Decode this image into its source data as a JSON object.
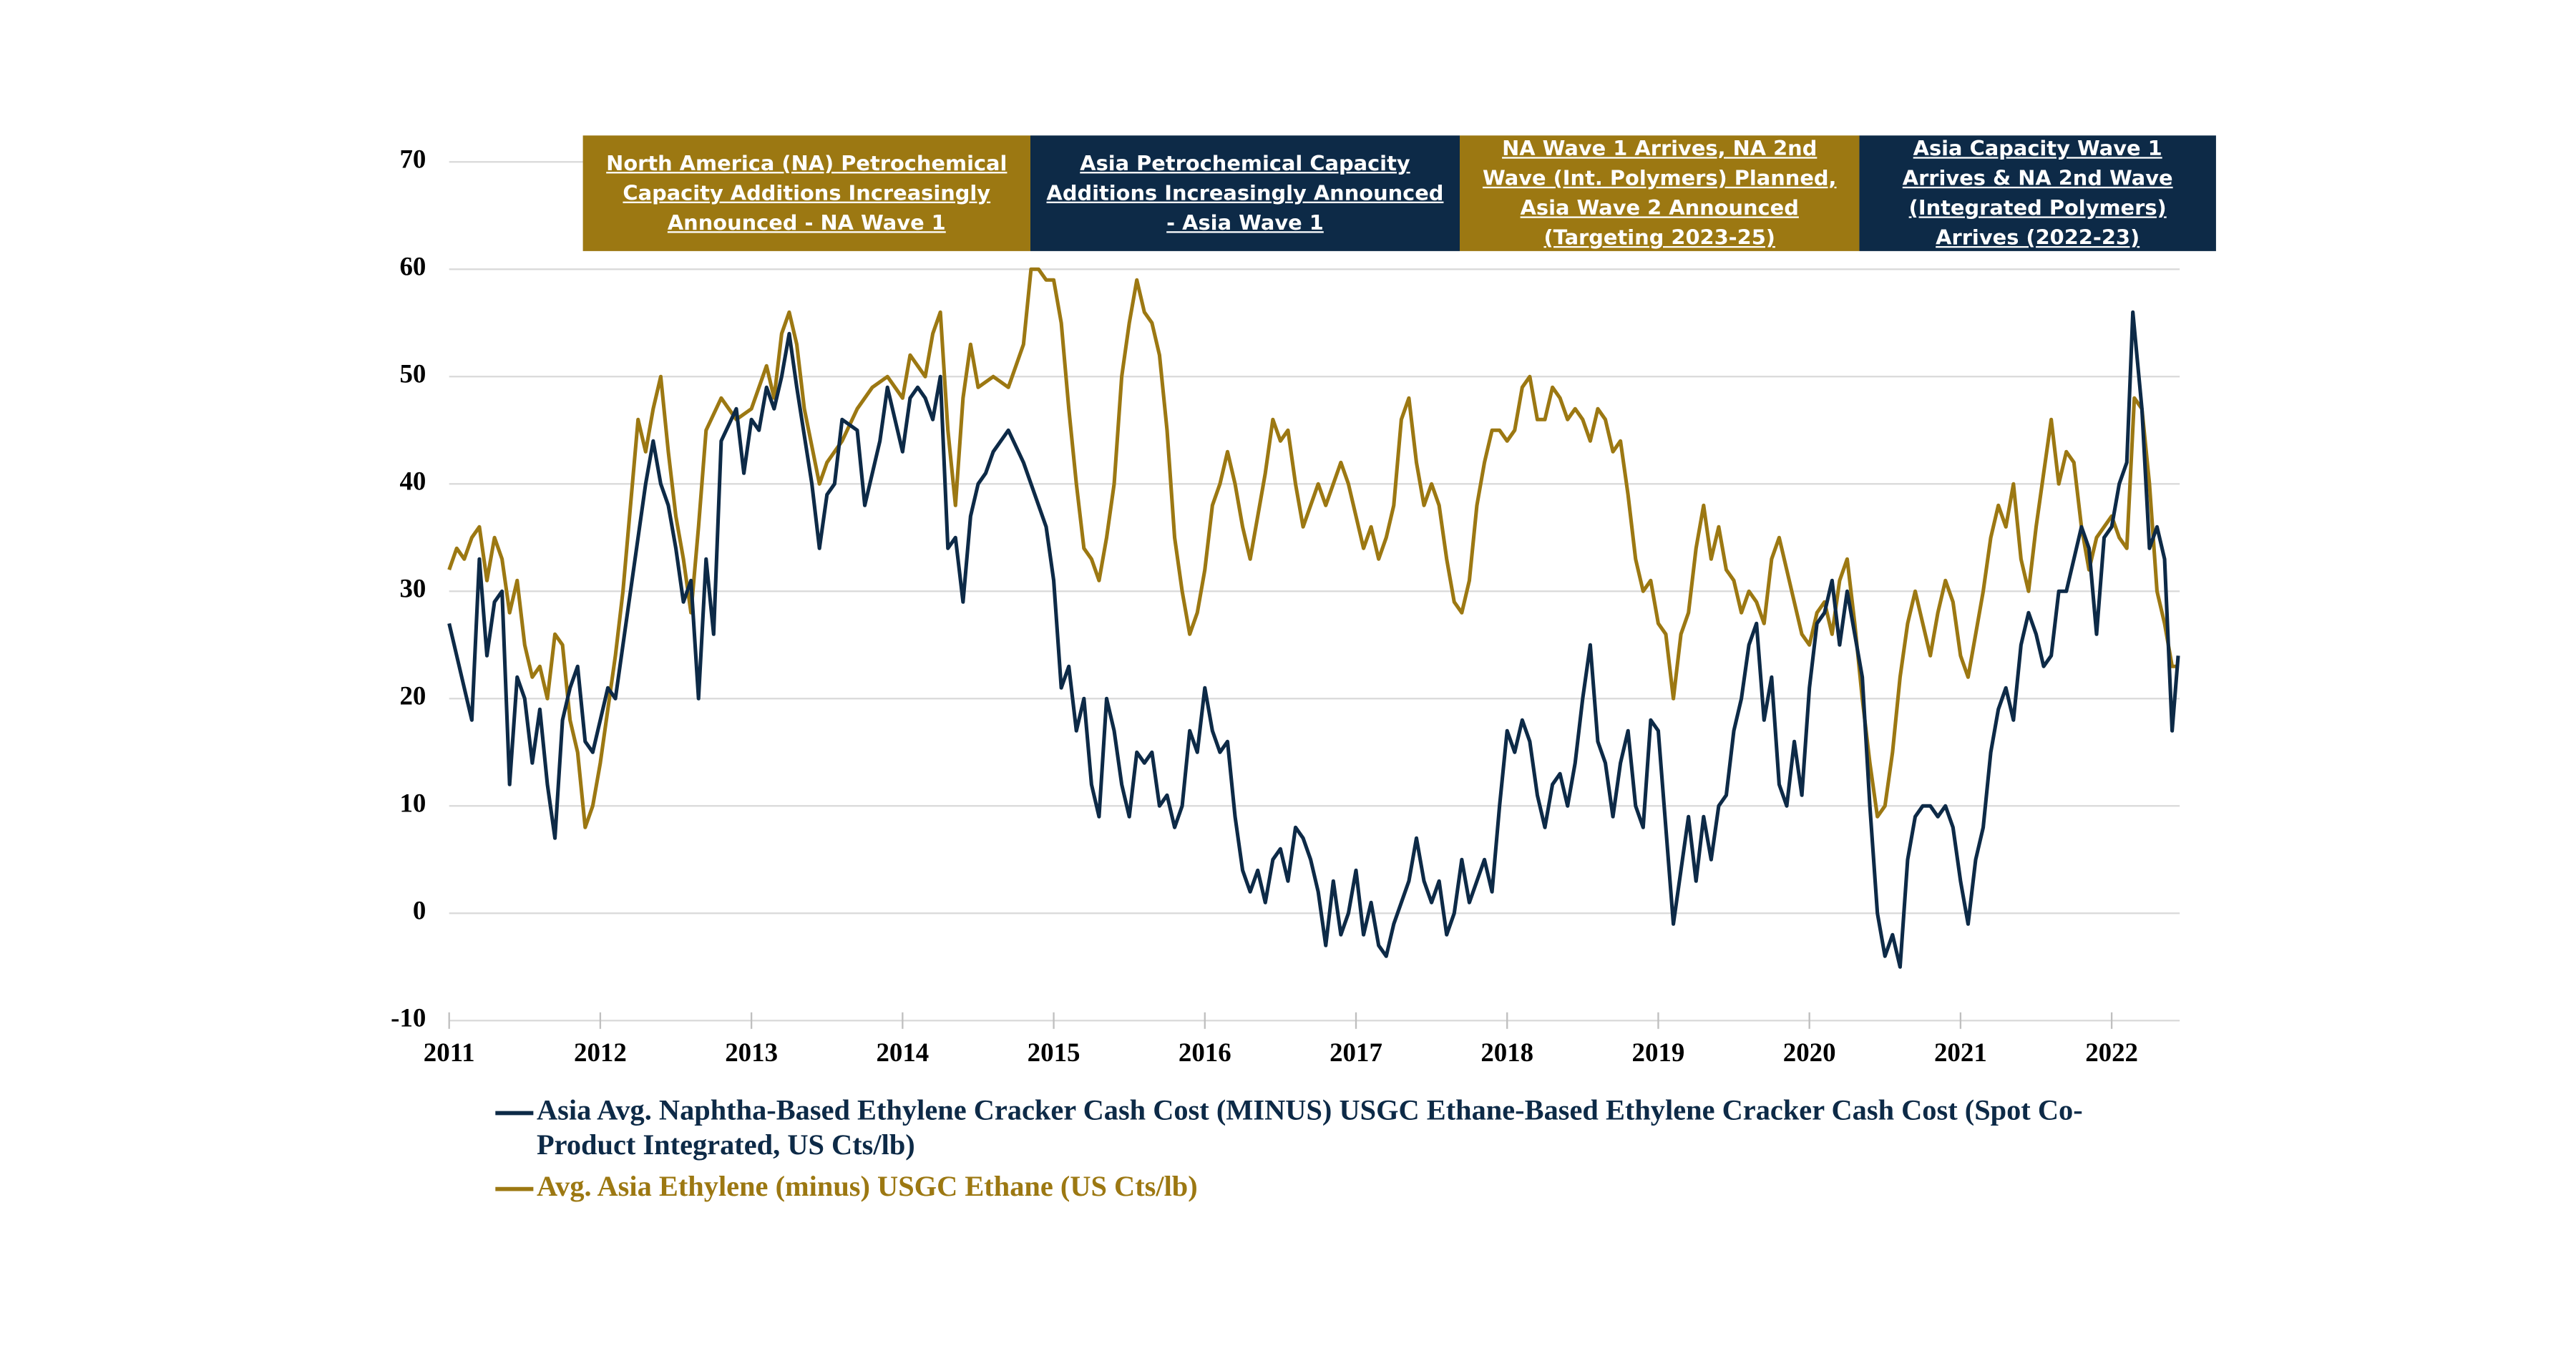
{
  "chart_data": {
    "type": "line",
    "annotations": [
      "North America (NA) Petrochemical Capacity Additions Increasingly Announced - NA Wave 1",
      "Asia Petrochemical Capacity Additions Increasingly Announced - Asia Wave 1",
      "NA Wave 1 Arrives, NA 2nd Wave (Int. Polymers) Planned, Asia Wave 2 Announced (Targeting 2023-25)",
      "Asia Capacity Wave 1 Arrives & NA 2nd Wave (Integrated Polymers) Arrives (2022-23)"
    ],
    "xlim": [
      2011,
      2022.45
    ],
    "xticks": [
      2011,
      2012,
      2013,
      2014,
      2015,
      2016,
      2017,
      2018,
      2019,
      2020,
      2021,
      2022
    ],
    "ylim": [
      -10,
      70
    ],
    "yticks": [
      -10,
      0,
      10,
      20,
      30,
      40,
      50,
      60,
      70
    ],
    "grid": true,
    "series": [
      {
        "name": "Asia Avg. Naphtha-Based Ethylene Cracker Cash Cost (MINUS) USGC Ethane-Based Ethylene Cracker Cash Cost (Spot Co-Product Integrated, US Cts/lb)",
        "color": "#0d2a47",
        "x": [
          2011,
          2011.05,
          2011.1,
          2011.15,
          2011.2,
          2011.25,
          2011.3,
          2011.35,
          2011.4,
          2011.45,
          2011.5,
          2011.55,
          2011.6,
          2011.65,
          2011.7,
          2011.75,
          2011.8,
          2011.85,
          2011.9,
          2011.95,
          2012,
          2012.05,
          2012.1,
          2012.2,
          2012.3,
          2012.35,
          2012.4,
          2012.45,
          2012.5,
          2012.55,
          2012.6,
          2012.65,
          2012.7,
          2012.75,
          2012.8,
          2012.9,
          2012.95,
          2013,
          2013.05,
          2013.1,
          2013.15,
          2013.2,
          2013.25,
          2013.3,
          2013.4,
          2013.45,
          2013.5,
          2013.55,
          2013.6,
          2013.7,
          2013.75,
          2013.85,
          2013.9,
          2014,
          2014.05,
          2014.1,
          2014.15,
          2014.2,
          2014.25,
          2014.3,
          2014.35,
          2014.4,
          2014.45,
          2014.5,
          2014.55,
          2014.6,
          2014.7,
          2014.8,
          2014.9,
          2014.95,
          2015,
          2015.05,
          2015.1,
          2015.15,
          2015.2,
          2015.25,
          2015.3,
          2015.35,
          2015.4,
          2015.45,
          2015.5,
          2015.55,
          2015.6,
          2015.65,
          2015.7,
          2015.75,
          2015.8,
          2015.85,
          2015.9,
          2015.95,
          2016,
          2016.05,
          2016.1,
          2016.15,
          2016.2,
          2016.25,
          2016.3,
          2016.35,
          2016.4,
          2016.45,
          2016.5,
          2016.55,
          2016.6,
          2016.65,
          2016.7,
          2016.75,
          2016.8,
          2016.85,
          2016.9,
          2016.95,
          2017,
          2017.05,
          2017.1,
          2017.15,
          2017.2,
          2017.25,
          2017.3,
          2017.35,
          2017.4,
          2017.45,
          2017.5,
          2017.55,
          2017.6,
          2017.65,
          2017.7,
          2017.75,
          2017.8,
          2017.85,
          2017.9,
          2017.95,
          2018,
          2018.05,
          2018.1,
          2018.15,
          2018.2,
          2018.25,
          2018.3,
          2018.35,
          2018.4,
          2018.45,
          2018.5,
          2018.55,
          2018.6,
          2018.65,
          2018.7,
          2018.75,
          2018.8,
          2018.85,
          2018.9,
          2018.95,
          2019,
          2019.05,
          2019.1,
          2019.15,
          2019.2,
          2019.25,
          2019.3,
          2019.35,
          2019.4,
          2019.45,
          2019.5,
          2019.55,
          2019.6,
          2019.65,
          2019.7,
          2019.75,
          2019.8,
          2019.85,
          2019.9,
          2019.95,
          2020,
          2020.05,
          2020.1,
          2020.15,
          2020.2,
          2020.25,
          2020.3,
          2020.35,
          2020.4,
          2020.45,
          2020.5,
          2020.55,
          2020.6,
          2020.65,
          2020.7,
          2020.75,
          2020.8,
          2020.85,
          2020.9,
          2020.95,
          2021,
          2021.05,
          2021.1,
          2021.15,
          2021.2,
          2021.25,
          2021.3,
          2021.35,
          2021.4,
          2021.45,
          2021.5,
          2021.55,
          2021.6,
          2021.65,
          2021.7,
          2021.8,
          2021.85,
          2021.9,
          2021.95,
          2022,
          2022.05,
          2022.1,
          2022.14,
          2022.2,
          2022.25,
          2022.3,
          2022.35,
          2022.4,
          2022.44
        ],
        "values": [
          27,
          24,
          21,
          18,
          33,
          24,
          29,
          30,
          12,
          22,
          20,
          14,
          19,
          12,
          7,
          18,
          21,
          23,
          16,
          15,
          18,
          21,
          20,
          30,
          40,
          44,
          40,
          38,
          34,
          29,
          31,
          20,
          33,
          26,
          44,
          47,
          41,
          46,
          45,
          49,
          47,
          50,
          54,
          49,
          40,
          34,
          39,
          40,
          46,
          45,
          38,
          44,
          49,
          43,
          48,
          49,
          48,
          46,
          50,
          34,
          35,
          29,
          37,
          40,
          41,
          43,
          45,
          42,
          38,
          36,
          31,
          21,
          23,
          17,
          20,
          12,
          9,
          20,
          17,
          12,
          9,
          15,
          14,
          15,
          10,
          11,
          8,
          10,
          17,
          15,
          21,
          17,
          15,
          16,
          9,
          4,
          2,
          4,
          1,
          5,
          6,
          3,
          8,
          7,
          5,
          2,
          -3,
          3,
          -2,
          0,
          4,
          -2,
          1,
          -3,
          -4,
          -1,
          1,
          3,
          7,
          3,
          1,
          3,
          -2,
          0,
          5,
          1,
          3,
          5,
          2,
          10,
          17,
          15,
          18,
          16,
          11,
          8,
          12,
          13,
          10,
          14,
          20,
          25,
          16,
          14,
          9,
          14,
          17,
          10,
          8,
          18,
          17,
          8,
          -1,
          4,
          9,
          3,
          9,
          5,
          10,
          11,
          17,
          20,
          25,
          27,
          18,
          22,
          12,
          10,
          16,
          11,
          21,
          27,
          28,
          31,
          25,
          30,
          26,
          22,
          10,
          0,
          -4,
          -2,
          -5,
          5,
          9,
          10,
          10,
          9,
          10,
          8,
          3,
          -1,
          5,
          8,
          15,
          19,
          21,
          18,
          25,
          28,
          26,
          23,
          24,
          30,
          30,
          36,
          34,
          26,
          35,
          36,
          40,
          42,
          56,
          47,
          34,
          36,
          33,
          17,
          24
        ]
      },
      {
        "name": "Avg. Asia Ethylene (minus) USGC Ethane (US Cts/lb)",
        "color": "#9c7812",
        "x": [
          2011,
          2011.05,
          2011.1,
          2011.15,
          2011.2,
          2011.25,
          2011.3,
          2011.35,
          2011.4,
          2011.45,
          2011.5,
          2011.55,
          2011.6,
          2011.65,
          2011.7,
          2011.75,
          2011.8,
          2011.85,
          2011.9,
          2011.95,
          2012,
          2012.05,
          2012.1,
          2012.15,
          2012.2,
          2012.25,
          2012.3,
          2012.35,
          2012.4,
          2012.45,
          2012.5,
          2012.55,
          2012.6,
          2012.65,
          2012.7,
          2012.8,
          2012.9,
          2013,
          2013.1,
          2013.15,
          2013.2,
          2013.25,
          2013.3,
          2013.35,
          2013.45,
          2013.5,
          2013.6,
          2013.7,
          2013.8,
          2013.9,
          2014,
          2014.05,
          2014.1,
          2014.15,
          2014.2,
          2014.25,
          2014.3,
          2014.35,
          2014.4,
          2014.45,
          2014.5,
          2014.6,
          2014.7,
          2014.8,
          2014.85,
          2014.9,
          2014.95,
          2015,
          2015.05,
          2015.1,
          2015.15,
          2015.2,
          2015.25,
          2015.3,
          2015.35,
          2015.4,
          2015.45,
          2015.5,
          2015.55,
          2015.6,
          2015.65,
          2015.7,
          2015.75,
          2015.8,
          2015.85,
          2015.9,
          2015.95,
          2016,
          2016.05,
          2016.1,
          2016.15,
          2016.2,
          2016.25,
          2016.3,
          2016.35,
          2016.4,
          2016.45,
          2016.5,
          2016.55,
          2016.6,
          2016.65,
          2016.7,
          2016.75,
          2016.8,
          2016.85,
          2016.9,
          2016.95,
          2017,
          2017.05,
          2017.1,
          2017.15,
          2017.2,
          2017.25,
          2017.3,
          2017.35,
          2017.4,
          2017.45,
          2017.5,
          2017.55,
          2017.6,
          2017.65,
          2017.7,
          2017.75,
          2017.8,
          2017.85,
          2017.9,
          2017.95,
          2018,
          2018.05,
          2018.1,
          2018.15,
          2018.2,
          2018.25,
          2018.3,
          2018.35,
          2018.4,
          2018.45,
          2018.5,
          2018.55,
          2018.6,
          2018.65,
          2018.7,
          2018.75,
          2018.8,
          2018.85,
          2018.9,
          2018.95,
          2019,
          2019.05,
          2019.1,
          2019.15,
          2019.2,
          2019.25,
          2019.3,
          2019.35,
          2019.4,
          2019.45,
          2019.5,
          2019.55,
          2019.6,
          2019.65,
          2019.7,
          2019.75,
          2019.8,
          2019.85,
          2019.9,
          2019.95,
          2020,
          2020.05,
          2020.1,
          2020.15,
          2020.2,
          2020.25,
          2020.3,
          2020.35,
          2020.4,
          2020.45,
          2020.5,
          2020.55,
          2020.6,
          2020.65,
          2020.7,
          2020.75,
          2020.8,
          2020.85,
          2020.9,
          2020.95,
          2021,
          2021.05,
          2021.1,
          2021.15,
          2021.2,
          2021.25,
          2021.3,
          2021.35,
          2021.4,
          2021.45,
          2021.5,
          2021.55,
          2021.6,
          2021.65,
          2021.7,
          2021.75,
          2021.8,
          2021.85,
          2021.9,
          2021.95,
          2022,
          2022.05,
          2022.1,
          2022.15,
          2022.2,
          2022.25,
          2022.3,
          2022.35,
          2022.4,
          2022.44
        ],
        "values": [
          32,
          34,
          33,
          35,
          36,
          31,
          35,
          33,
          28,
          31,
          25,
          22,
          23,
          20,
          26,
          25,
          18,
          15,
          8,
          10,
          14,
          19,
          24,
          30,
          38,
          46,
          43,
          47,
          50,
          43,
          37,
          33,
          28,
          36,
          45,
          48,
          46,
          47,
          51,
          48,
          54,
          56,
          53,
          47,
          40,
          42,
          44,
          47,
          49,
          50,
          48,
          52,
          51,
          50,
          54,
          56,
          45,
          38,
          48,
          53,
          49,
          50,
          49,
          53,
          60,
          60,
          59,
          59,
          55,
          47,
          40,
          34,
          33,
          31,
          35,
          40,
          50,
          55,
          59,
          56,
          55,
          52,
          45,
          35,
          30,
          26,
          28,
          32,
          38,
          40,
          43,
          40,
          36,
          33,
          37,
          41,
          46,
          44,
          45,
          40,
          36,
          38,
          40,
          38,
          40,
          42,
          40,
          37,
          34,
          36,
          33,
          35,
          38,
          46,
          48,
          42,
          38,
          40,
          38,
          33,
          29,
          28,
          31,
          38,
          42,
          45,
          45,
          44,
          45,
          49,
          50,
          46,
          46,
          49,
          48,
          46,
          47,
          46,
          44,
          47,
          46,
          43,
          44,
          39,
          33,
          30,
          31,
          27,
          26,
          20,
          26,
          28,
          34,
          38,
          33,
          36,
          32,
          31,
          28,
          30,
          29,
          27,
          33,
          35,
          32,
          29,
          26,
          25,
          28,
          29,
          26,
          31,
          33,
          27,
          20,
          14,
          9,
          10,
          15,
          22,
          27,
          30,
          27,
          24,
          28,
          31,
          29,
          24,
          22,
          26,
          30,
          35,
          38,
          36,
          40,
          33,
          30,
          36,
          41,
          46,
          40,
          43,
          42,
          36,
          32,
          35,
          36,
          37,
          35,
          34,
          48,
          47,
          40,
          30,
          27,
          23,
          23
        ]
      }
    ]
  }
}
